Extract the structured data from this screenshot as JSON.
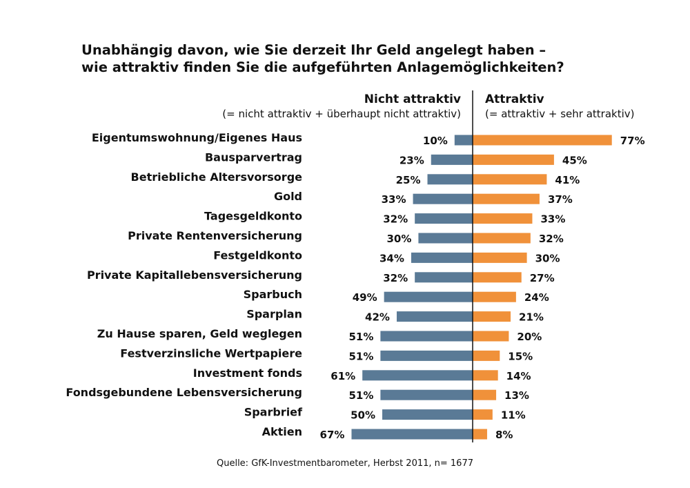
{
  "chart_data": {
    "type": "bar",
    "title": [
      "Unabhängig davon, wie Sie derzeit Ihr Geld angelegt haben –",
      "wie attraktiv finden Sie die aufgeführten Anlagemöglichkeiten?"
    ],
    "left_header": {
      "title": "Nicht attraktiv",
      "subtitle": "(= nicht attraktiv + überhaupt nicht attraktiv)"
    },
    "right_header": {
      "title": "Attraktiv",
      "subtitle": "(= attraktiv + sehr attraktiv)"
    },
    "categories": [
      "Eigentumswohnung/Eigenes Haus",
      "Bausparvertrag",
      "Betriebliche Altersvorsorge",
      "Gold",
      "Tagesgeldkonto",
      "Private Rentenversicherung",
      "Festgeldkonto",
      "Private Kapitallebensversicherung",
      "Sparbuch",
      "Sparplan",
      "Zu Hause sparen, Geld weglegen",
      "Festverzinsliche Wertpapiere",
      "Investment fonds",
      "Fondsgebundene Lebensversicherung",
      "Sparbrief",
      "Aktien"
    ],
    "series": [
      {
        "name": "Nicht attraktiv",
        "color": "#5a7a96",
        "values": [
          10,
          23,
          25,
          33,
          32,
          30,
          34,
          32,
          49,
          42,
          51,
          51,
          61,
          51,
          50,
          67
        ]
      },
      {
        "name": "Attraktiv",
        "color": "#f0913a",
        "values": [
          77,
          45,
          41,
          37,
          33,
          32,
          30,
          27,
          24,
          21,
          20,
          15,
          14,
          13,
          11,
          8
        ]
      }
    ],
    "value_suffix": "%",
    "source": "Quelle: GfK-Investmentbarometer,  Herbst 2011, n= 1677"
  }
}
